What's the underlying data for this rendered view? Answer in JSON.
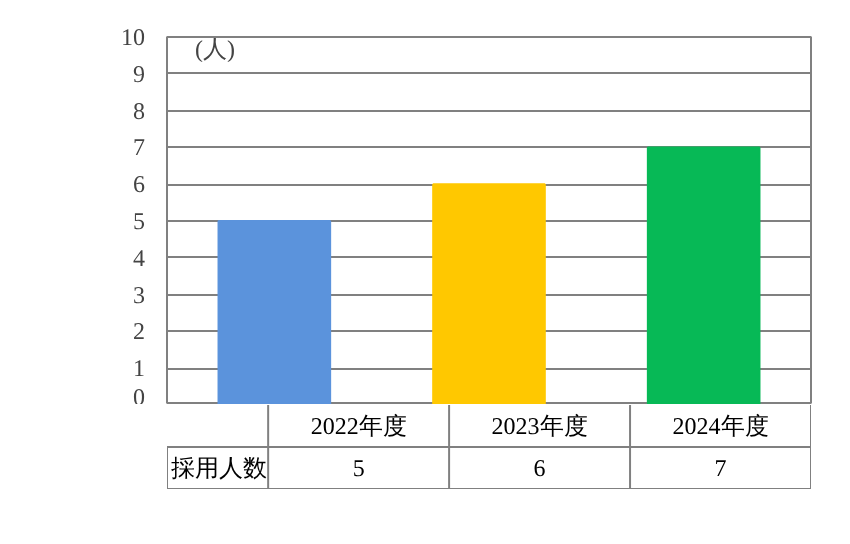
{
  "chart_data": {
    "type": "bar",
    "ylabel": "(人)",
    "categories": [
      "2022年度",
      "2023年度",
      "2024年度"
    ],
    "series": [
      {
        "name": "採用人数",
        "values": [
          5,
          6,
          7
        ]
      }
    ],
    "colors": [
      "#5b93dc",
      "#ffc800",
      "#07b956"
    ],
    "ylim": [
      0,
      10
    ],
    "yticks": [
      0,
      1,
      2,
      3,
      4,
      5,
      6,
      7,
      8,
      9,
      10
    ],
    "grid": "y",
    "data_labels": true
  }
}
